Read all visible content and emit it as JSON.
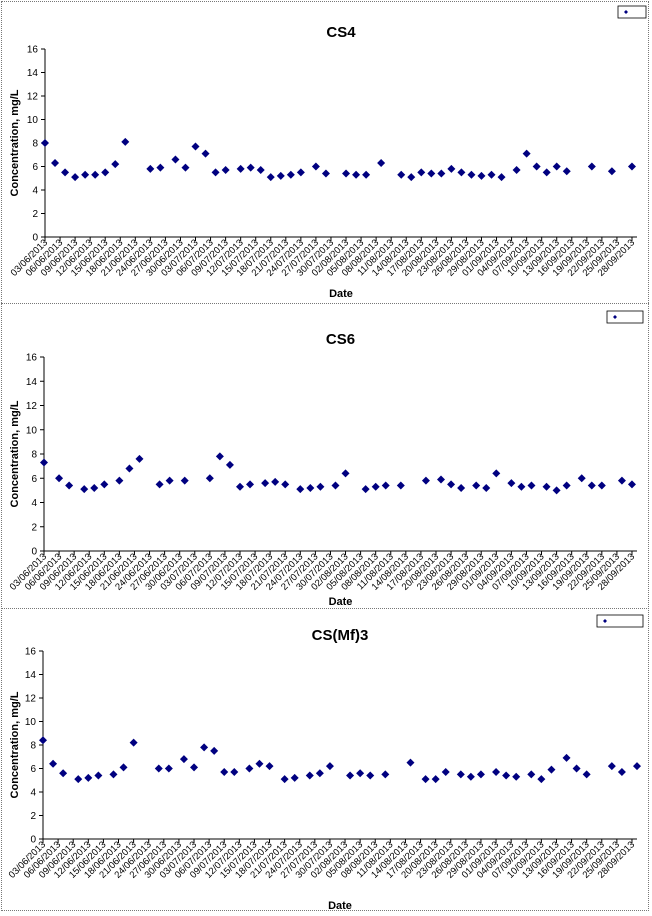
{
  "chart_data": [
    {
      "type": "scatter",
      "title": "CS4",
      "xlabel": "Date",
      "ylabel": "Concentration, mg/L",
      "ylim": [
        0,
        16
      ],
      "yticks": [
        0,
        2,
        4,
        6,
        8,
        10,
        12,
        14,
        16
      ],
      "xlim": [
        "2013-06-03",
        "2013-09-29"
      ],
      "xtick_labels": [
        "03/06/2013",
        "06/06/2013",
        "09/06/2013",
        "12/06/2013",
        "15/06/2013",
        "18/06/2013",
        "21/06/2013",
        "24/06/2013",
        "27/06/2013",
        "30/06/2013",
        "03/07/2013",
        "06/07/2013",
        "09/07/2013",
        "12/07/2013",
        "15/07/2013",
        "18/07/2013",
        "21/07/2013",
        "24/07/2013",
        "27/07/2013",
        "30/07/2013",
        "02/08/2013",
        "05/08/2013",
        "08/08/2013",
        "11/08/2013",
        "14/08/2013",
        "17/08/2013",
        "20/08/2013",
        "23/08/2013",
        "26/08/2013",
        "29/08/2013",
        "01/09/2013",
        "04/09/2013",
        "07/09/2013",
        "10/09/2013",
        "13/09/2013",
        "16/09/2013",
        "19/09/2013",
        "22/09/2013",
        "25/09/2013",
        "28/09/2013"
      ],
      "legend": "top-right",
      "series": [
        {
          "color": "#000080",
          "x": [
            "2013-06-03",
            "2013-06-05",
            "2013-06-07",
            "2013-06-09",
            "2013-06-11",
            "2013-06-13",
            "2013-06-15",
            "2013-06-17",
            "2013-06-19",
            "2013-06-24",
            "2013-06-26",
            "2013-06-29",
            "2013-07-01",
            "2013-07-03",
            "2013-07-05",
            "2013-07-07",
            "2013-07-09",
            "2013-07-12",
            "2013-07-14",
            "2013-07-16",
            "2013-07-18",
            "2013-07-20",
            "2013-07-22",
            "2013-07-24",
            "2013-07-27",
            "2013-07-29",
            "2013-08-02",
            "2013-08-04",
            "2013-08-06",
            "2013-08-09",
            "2013-08-13",
            "2013-08-15",
            "2013-08-17",
            "2013-08-19",
            "2013-08-21",
            "2013-08-23",
            "2013-08-25",
            "2013-08-27",
            "2013-08-29",
            "2013-08-31",
            "2013-09-02",
            "2013-09-05",
            "2013-09-07",
            "2013-09-09",
            "2013-09-11",
            "2013-09-13",
            "2013-09-15",
            "2013-09-20",
            "2013-09-24",
            "2013-09-28"
          ],
          "y": [
            8.0,
            6.3,
            5.5,
            5.1,
            5.3,
            5.3,
            5.5,
            6.2,
            8.1,
            5.8,
            5.9,
            6.6,
            5.9,
            7.7,
            7.1,
            5.5,
            5.7,
            5.8,
            5.9,
            5.7,
            5.1,
            5.2,
            5.3,
            5.5,
            6.0,
            5.4,
            5.4,
            5.3,
            5.3,
            6.3,
            5.3,
            5.1,
            5.5,
            5.4,
            5.4,
            5.8,
            5.5,
            5.3,
            5.2,
            5.3,
            5.1,
            5.7,
            7.1,
            6.0,
            5.5,
            6.0,
            5.6,
            6.0,
            5.6,
            6.0
          ]
        }
      ]
    },
    {
      "type": "scatter",
      "title": "CS6",
      "xlabel": "Date",
      "ylabel": "Concentration, mg/L",
      "ylim": [
        0,
        16
      ],
      "yticks": [
        0,
        2,
        4,
        6,
        8,
        10,
        12,
        14,
        16
      ],
      "xlim": [
        "2013-06-03",
        "2013-09-29"
      ],
      "xtick_labels": [
        "03/06/2013",
        "06/06/2013",
        "09/06/2013",
        "12/06/2013",
        "15/06/2013",
        "18/06/2013",
        "21/06/2013",
        "24/06/2013",
        "27/06/2013",
        "30/06/2013",
        "03/07/2013",
        "06/07/2013",
        "09/07/2013",
        "12/07/2013",
        "15/07/2013",
        "18/07/2013",
        "21/07/2013",
        "24/07/2013",
        "27/07/2013",
        "30/07/2013",
        "02/08/2013",
        "05/08/2013",
        "08/08/2013",
        "11/08/2013",
        "14/08/2013",
        "17/08/2013",
        "20/08/2013",
        "23/08/2013",
        "26/08/2013",
        "29/08/2013",
        "01/09/2013",
        "04/09/2013",
        "07/09/2013",
        "10/09/2013",
        "13/09/2013",
        "16/09/2013",
        "19/09/2013",
        "22/09/2013",
        "25/09/2013",
        "28/09/2013"
      ],
      "legend": "top-right",
      "series": [
        {
          "color": "#000080",
          "x": [
            "2013-06-03",
            "2013-06-06",
            "2013-06-08",
            "2013-06-11",
            "2013-06-13",
            "2013-06-15",
            "2013-06-18",
            "2013-06-20",
            "2013-06-22",
            "2013-06-26",
            "2013-06-28",
            "2013-07-01",
            "2013-07-06",
            "2013-07-08",
            "2013-07-10",
            "2013-07-12",
            "2013-07-14",
            "2013-07-17",
            "2013-07-19",
            "2013-07-21",
            "2013-07-24",
            "2013-07-26",
            "2013-07-28",
            "2013-07-31",
            "2013-08-02",
            "2013-08-06",
            "2013-08-08",
            "2013-08-10",
            "2013-08-13",
            "2013-08-18",
            "2013-08-21",
            "2013-08-23",
            "2013-08-25",
            "2013-08-28",
            "2013-08-30",
            "2013-09-01",
            "2013-09-04",
            "2013-09-06",
            "2013-09-08",
            "2013-09-11",
            "2013-09-13",
            "2013-09-15",
            "2013-09-18",
            "2013-09-20",
            "2013-09-22",
            "2013-09-26",
            "2013-09-28"
          ],
          "y": [
            7.3,
            6.0,
            5.4,
            5.1,
            5.2,
            5.5,
            5.8,
            6.8,
            7.6,
            5.5,
            5.8,
            5.8,
            6.0,
            7.8,
            7.1,
            5.3,
            5.5,
            5.6,
            5.7,
            5.5,
            5.1,
            5.2,
            5.3,
            5.4,
            6.4,
            5.1,
            5.3,
            5.4,
            5.4,
            5.8,
            5.9,
            5.5,
            5.2,
            5.4,
            5.2,
            6.4,
            5.6,
            5.3,
            5.4,
            5.3,
            5.0,
            5.4,
            6.0,
            5.4,
            5.4,
            5.8,
            5.5
          ]
        }
      ]
    },
    {
      "type": "scatter",
      "title": "CS(Mf)3",
      "xlabel": "Date",
      "ylabel": "Concentration, mg/L",
      "ylim": [
        0,
        16
      ],
      "yticks": [
        0,
        2,
        4,
        6,
        8,
        10,
        12,
        14,
        16
      ],
      "xlim": [
        "2013-06-03",
        "2013-09-29"
      ],
      "xtick_labels": [
        "03/06/2013",
        "06/06/2013",
        "09/06/2013",
        "12/06/2013",
        "15/06/2013",
        "18/06/2013",
        "21/06/2013",
        "24/06/2013",
        "27/06/2013",
        "30/06/2013",
        "03/07/2013",
        "06/07/2013",
        "09/07/2013",
        "12/07/2013",
        "15/07/2013",
        "18/07/2013",
        "21/07/2013",
        "24/07/2013",
        "27/07/2013",
        "30/07/2013",
        "02/08/2013",
        "05/08/2013",
        "08/08/2013",
        "11/08/2013",
        "14/08/2013",
        "17/08/2013",
        "20/08/2013",
        "23/08/2013",
        "26/08/2013",
        "29/08/2013",
        "01/09/2013",
        "04/09/2013",
        "07/09/2013",
        "10/09/2013",
        "13/09/2013",
        "16/09/2013",
        "19/09/2013",
        "22/09/2013",
        "25/09/2013",
        "28/09/2013"
      ],
      "legend": "top-right",
      "series": [
        {
          "color": "#000080",
          "x": [
            "2013-06-03",
            "2013-06-05",
            "2013-06-07",
            "2013-06-10",
            "2013-06-12",
            "2013-06-14",
            "2013-06-17",
            "2013-06-19",
            "2013-06-21",
            "2013-06-26",
            "2013-06-28",
            "2013-07-01",
            "2013-07-03",
            "2013-07-05",
            "2013-07-07",
            "2013-07-09",
            "2013-07-11",
            "2013-07-14",
            "2013-07-16",
            "2013-07-18",
            "2013-07-21",
            "2013-07-23",
            "2013-07-26",
            "2013-07-28",
            "2013-07-30",
            "2013-08-03",
            "2013-08-05",
            "2013-08-07",
            "2013-08-10",
            "2013-08-15",
            "2013-08-18",
            "2013-08-20",
            "2013-08-22",
            "2013-08-25",
            "2013-08-27",
            "2013-08-29",
            "2013-09-01",
            "2013-09-03",
            "2013-09-05",
            "2013-09-08",
            "2013-09-10",
            "2013-09-12",
            "2013-09-15",
            "2013-09-17",
            "2013-09-19",
            "2013-09-24",
            "2013-09-26",
            "2013-09-29"
          ],
          "y": [
            8.4,
            6.4,
            5.6,
            5.1,
            5.2,
            5.4,
            5.5,
            6.1,
            8.2,
            6.0,
            6.0,
            6.8,
            6.1,
            7.8,
            7.5,
            5.7,
            5.7,
            6.0,
            6.4,
            6.2,
            5.1,
            5.2,
            5.4,
            5.6,
            6.2,
            5.4,
            5.6,
            5.4,
            5.5,
            6.5,
            5.1,
            5.1,
            5.7,
            5.5,
            5.3,
            5.5,
            5.7,
            5.4,
            5.3,
            5.5,
            5.1,
            5.9,
            6.9,
            6.0,
            5.5,
            6.2,
            5.7,
            6.2
          ]
        }
      ]
    }
  ]
}
